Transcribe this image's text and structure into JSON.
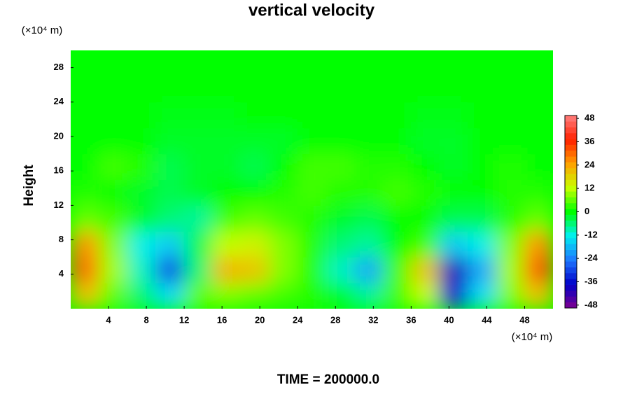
{
  "chart_data": {
    "type": "contour",
    "title": "vertical velocity",
    "y_label": "Height",
    "y_unit": "(×10⁴ m)",
    "x_unit": "(×10⁴ m)",
    "footer": "TIME = 200000.0",
    "xlim": [
      0,
      51
    ],
    "ylim": [
      0,
      30
    ],
    "xticks": [
      4,
      8,
      12,
      16,
      20,
      24,
      28,
      32,
      36,
      40,
      44,
      48
    ],
    "yticks": [
      4,
      8,
      12,
      16,
      20,
      24,
      28
    ],
    "x": [
      1.5,
      4.5,
      7.5,
      10.5,
      13.5,
      16.5,
      19.5,
      22.5,
      25.5,
      28.5,
      31.5,
      34.5,
      37.5,
      40.5,
      43.5,
      46.5,
      49.5
    ],
    "y": [
      1.5,
      4.5,
      7.5,
      10.5,
      13.5,
      16.5,
      19.5,
      22.5,
      25.5,
      28.5
    ],
    "z": [
      [
        20,
        6,
        -6,
        -14,
        6,
        8,
        6,
        4,
        2,
        -2,
        -8,
        4,
        12,
        -36,
        -14,
        8,
        20
      ],
      [
        30,
        10,
        -10,
        -30,
        -6,
        22,
        20,
        8,
        2,
        -10,
        -20,
        4,
        20,
        -40,
        -20,
        10,
        32
      ],
      [
        26,
        8,
        -12,
        -16,
        -4,
        12,
        14,
        8,
        2,
        -6,
        -8,
        0,
        4,
        -16,
        -12,
        8,
        26
      ],
      [
        6,
        4,
        -2,
        -6,
        -8,
        4,
        6,
        4,
        2,
        -2,
        -4,
        0,
        0,
        -4,
        -4,
        2,
        6
      ],
      [
        2,
        0,
        -2,
        -4,
        -2,
        0,
        0,
        2,
        4,
        2,
        2,
        4,
        2,
        0,
        0,
        2,
        2
      ],
      [
        0,
        4,
        2,
        -4,
        -2,
        -2,
        -4,
        0,
        4,
        4,
        2,
        2,
        0,
        -2,
        0,
        2,
        0
      ],
      [
        0,
        0,
        0,
        -2,
        -2,
        -2,
        -2,
        -2,
        0,
        0,
        0,
        0,
        -2,
        -2,
        0,
        0,
        0
      ],
      [
        0,
        0,
        0,
        -1,
        -1,
        -1,
        0,
        0,
        0,
        0,
        0,
        0,
        -1,
        -1,
        0,
        0,
        0
      ],
      [
        0,
        0,
        0,
        0,
        0,
        0,
        0,
        0,
        0,
        0,
        0,
        0,
        0,
        0,
        0,
        0,
        0
      ],
      [
        0,
        0,
        0,
        0,
        0,
        0,
        0,
        0,
        0,
        0,
        0,
        0,
        0,
        0,
        0,
        0,
        0
      ]
    ],
    "clim": [
      -49.5,
      49.5
    ],
    "colorbar_ticks": [
      -48,
      -36,
      -24,
      -12,
      0,
      12,
      24,
      36,
      48
    ],
    "colormap": [
      "#800090",
      "#0000c8",
      "#1e78ff",
      "#00f0f0",
      "#00ff00",
      "#c8ff00",
      "#ffa000",
      "#ff2000",
      "#ff8080"
    ]
  }
}
